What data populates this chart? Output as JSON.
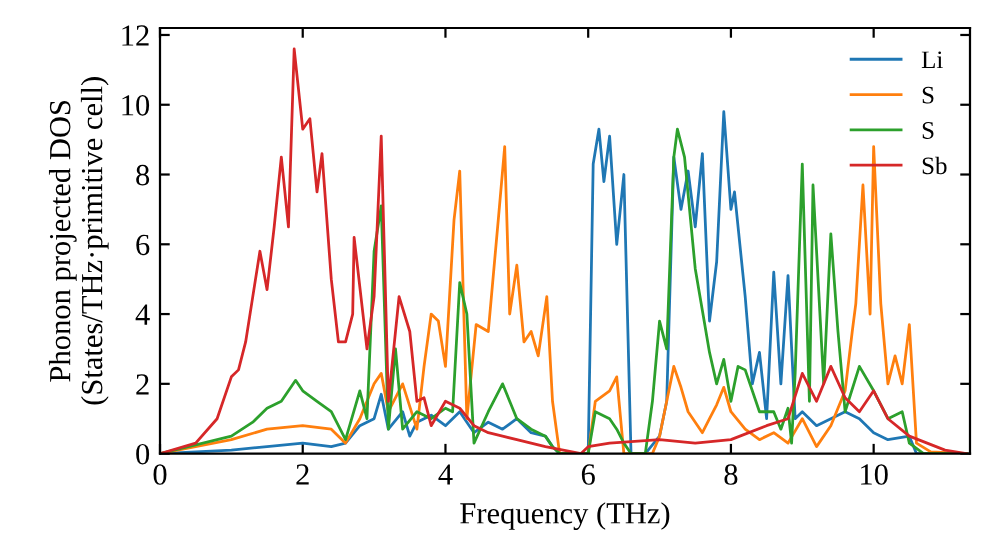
{
  "chart_data": {
    "type": "line",
    "xlabel": "Frequency (THz)",
    "ylabel": "Phonon projected DOS\n(States/THz·primitive cell)",
    "xlim": [
      0,
      11.35
    ],
    "ylim": [
      0,
      12.2
    ],
    "xticks": [
      0,
      2,
      4,
      6,
      8,
      10
    ],
    "yticks": [
      0,
      2,
      4,
      6,
      8,
      10,
      12
    ],
    "legend": "top right",
    "grid": false,
    "marker": "none",
    "line_style": "solid",
    "series": [
      {
        "name": "Li",
        "color": "#1f77b4",
        "x": [
          0,
          1,
          1.5,
          2,
          2.4,
          2.6,
          2.8,
          3.0,
          3.1,
          3.2,
          3.4,
          3.5,
          3.6,
          3.8,
          4.0,
          4.2,
          4.4,
          4.6,
          4.8,
          5.0,
          5.2,
          5.4,
          5.5,
          5.6,
          6.0,
          6.07,
          6.15,
          6.22,
          6.3,
          6.4,
          6.5,
          6.6,
          6.8,
          7.0,
          7.1,
          7.2,
          7.3,
          7.4,
          7.5,
          7.6,
          7.7,
          7.8,
          7.9,
          8.0,
          8.05,
          8.2,
          8.3,
          8.4,
          8.5,
          8.6,
          8.7,
          8.8,
          8.9,
          9.0,
          9.2,
          9.4,
          9.6,
          9.8,
          10.0,
          10.2,
          10.5,
          10.6,
          11.3
        ],
        "values": [
          0,
          0.1,
          0.2,
          0.3,
          0.2,
          0.3,
          0.8,
          1.0,
          1.7,
          0.7,
          1.2,
          0.5,
          0.9,
          1.1,
          0.8,
          1.2,
          0.6,
          0.9,
          0.7,
          1.0,
          0.6,
          0.5,
          0.2,
          0,
          0,
          8.3,
          9.3,
          7.8,
          9.1,
          6.0,
          8.0,
          0,
          0,
          0.5,
          1.5,
          8.5,
          7.0,
          8.1,
          6.5,
          8.6,
          3.8,
          5.5,
          9.8,
          7.0,
          7.5,
          4.5,
          2.0,
          2.9,
          1.0,
          5.2,
          2.0,
          5.1,
          1.0,
          1.2,
          0.8,
          1.0,
          1.2,
          1.0,
          0.6,
          0.4,
          0.5,
          0,
          0
        ]
      },
      {
        "name": "S",
        "color": "#ff7f0e",
        "x": [
          0,
          1,
          1.5,
          2,
          2.4,
          2.6,
          2.8,
          3.0,
          3.1,
          3.2,
          3.4,
          3.6,
          3.7,
          3.8,
          3.9,
          4.0,
          4.12,
          4.2,
          4.3,
          4.43,
          4.6,
          4.74,
          4.83,
          4.9,
          5.0,
          5.1,
          5.2,
          5.3,
          5.42,
          5.5,
          5.6,
          6.0,
          6.1,
          6.3,
          6.4,
          6.5,
          6.9,
          7.0,
          7.1,
          7.2,
          7.3,
          7.4,
          7.6,
          7.7,
          7.8,
          7.9,
          8.0,
          8.2,
          8.4,
          8.6,
          8.8,
          9.0,
          9.2,
          9.4,
          9.6,
          9.7,
          9.75,
          9.85,
          9.95,
          10.0,
          10.1,
          10.2,
          10.3,
          10.4,
          10.5,
          10.6,
          10.8,
          11.3
        ],
        "values": [
          0,
          0.4,
          0.7,
          0.8,
          0.7,
          0.3,
          1.0,
          2.0,
          2.3,
          1.2,
          2.0,
          0.7,
          2.5,
          4.0,
          3.8,
          2.5,
          6.7,
          8.1,
          1.0,
          3.7,
          3.5,
          6.7,
          8.8,
          4.0,
          5.4,
          3.2,
          3.5,
          2.8,
          4.5,
          1.5,
          0,
          0,
          1.5,
          1.8,
          2.2,
          0,
          0,
          0.5,
          1.5,
          2.5,
          1.9,
          1.2,
          0.6,
          1.0,
          1.4,
          1.9,
          1.2,
          0.7,
          0.4,
          0.6,
          0.3,
          1.0,
          0.2,
          0.8,
          1.8,
          3.5,
          4.3,
          7.7,
          4.0,
          8.8,
          4.3,
          2.0,
          2.8,
          2.0,
          3.7,
          0.3,
          0.05,
          0
        ]
      },
      {
        "name": "S",
        "color": "#2ca02c",
        "x": [
          0,
          1,
          1.3,
          1.5,
          1.7,
          1.9,
          2.0,
          2.2,
          2.4,
          2.6,
          2.8,
          2.9,
          3.0,
          3.1,
          3.2,
          3.3,
          3.4,
          3.6,
          3.8,
          4.0,
          4.1,
          4.2,
          4.3,
          4.4,
          4.6,
          4.8,
          5.0,
          5.2,
          5.4,
          5.5,
          5.6,
          6.0,
          6.1,
          6.3,
          6.4,
          6.5,
          6.6,
          6.8,
          6.9,
          7.0,
          7.1,
          7.2,
          7.25,
          7.35,
          7.5,
          7.6,
          7.7,
          7.8,
          7.9,
          8.0,
          8.1,
          8.2,
          8.4,
          8.6,
          8.7,
          8.8,
          8.85,
          8.9,
          9.0,
          9.1,
          9.15,
          9.3,
          9.4,
          9.5,
          9.6,
          9.8,
          10.0,
          10.2,
          10.4,
          10.5,
          10.7,
          11.3
        ],
        "values": [
          0,
          0.5,
          0.9,
          1.3,
          1.5,
          2.1,
          1.8,
          1.5,
          1.2,
          0.4,
          1.8,
          1.0,
          5.8,
          7.1,
          0.7,
          3.0,
          0.7,
          1.2,
          1.0,
          1.3,
          1.2,
          4.9,
          4.0,
          0.3,
          1.2,
          2.0,
          1.0,
          0.7,
          0.5,
          0.2,
          0,
          0,
          1.2,
          1.0,
          0.7,
          0.3,
          0,
          0,
          1.5,
          3.8,
          3.0,
          8.5,
          9.3,
          8.5,
          5.3,
          4.1,
          2.9,
          2.0,
          2.7,
          1.5,
          2.5,
          2.4,
          1.2,
          1.2,
          0.7,
          1.3,
          0.3,
          2.3,
          8.3,
          1.5,
          7.7,
          2.0,
          6.3,
          3.5,
          1.2,
          2.5,
          1.8,
          1.0,
          1.2,
          0.3,
          0,
          0
        ]
      },
      {
        "name": "Sb",
        "color": "#d62728",
        "x": [
          0,
          0.5,
          0.8,
          1.0,
          1.1,
          1.2,
          1.3,
          1.4,
          1.5,
          1.6,
          1.7,
          1.8,
          1.88,
          2.0,
          2.1,
          2.2,
          2.27,
          2.4,
          2.5,
          2.6,
          2.7,
          2.72,
          2.9,
          3.0,
          3.1,
          3.2,
          3.35,
          3.5,
          3.6,
          3.7,
          3.8,
          4.0,
          4.2,
          4.4,
          4.6,
          4.8,
          5.0,
          5.4,
          5.9,
          6.0,
          6.3,
          7.0,
          7.5,
          8.0,
          8.5,
          8.8,
          9.0,
          9.2,
          9.4,
          9.6,
          9.8,
          10.0,
          10.2,
          10.5,
          11.0,
          11.3
        ],
        "values": [
          0,
          0.3,
          1.0,
          2.2,
          2.4,
          3.2,
          4.5,
          5.8,
          4.7,
          6.5,
          8.5,
          6.5,
          11.6,
          9.3,
          9.6,
          7.5,
          8.6,
          5.0,
          3.2,
          3.2,
          4.0,
          6.2,
          3.0,
          4.5,
          9.1,
          1.5,
          4.5,
          3.5,
          1.5,
          1.6,
          0.8,
          1.5,
          1.3,
          0.8,
          0.6,
          0.5,
          0.4,
          0.2,
          0,
          0.2,
          0.3,
          0.4,
          0.3,
          0.4,
          0.8,
          1.0,
          2.3,
          1.5,
          2.5,
          1.6,
          1.2,
          1.8,
          1.0,
          0.5,
          0.1,
          0
        ]
      }
    ]
  }
}
